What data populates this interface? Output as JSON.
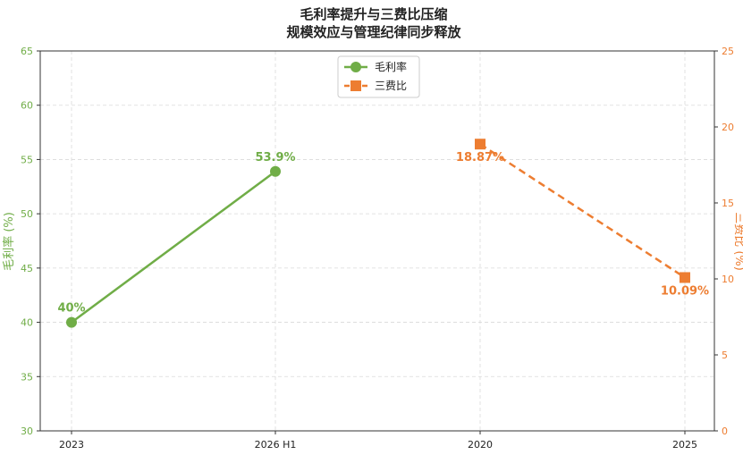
{
  "chart_data": {
    "type": "line",
    "title_lines": [
      "毛利率提升与三费比压缩",
      "规模效应与管理纪律同步释放"
    ],
    "x_categories": [
      "2023",
      "2026 H1",
      "2020",
      "2025"
    ],
    "left_axis": {
      "label": "毛利率 (%)",
      "ylim": [
        30,
        65
      ],
      "ticks": [
        30,
        35,
        40,
        45,
        50,
        55,
        60,
        65
      ],
      "color": "#70ad47"
    },
    "right_axis": {
      "label": "三费比 (%)",
      "ylim": [
        0,
        25
      ],
      "ticks": [
        0,
        5,
        10,
        15,
        20,
        25
      ],
      "color": "#ed7d31"
    },
    "grid": true,
    "legend_position": "top-center",
    "series": [
      {
        "name": "毛利率",
        "axis": "left",
        "color": "#70ad47",
        "marker": "circle",
        "line_style": "solid",
        "points": [
          {
            "x": "2023",
            "y": 40,
            "label": "40%"
          },
          {
            "x": "2026 H1",
            "y": 53.9,
            "label": "53.9%"
          }
        ]
      },
      {
        "name": "三费比",
        "axis": "right",
        "color": "#ed7d31",
        "marker": "square",
        "line_style": "dashed",
        "points": [
          {
            "x": "2020",
            "y": 18.87,
            "label": "18.87%"
          },
          {
            "x": "2025",
            "y": 10.09,
            "label": "10.09%"
          }
        ]
      }
    ]
  }
}
